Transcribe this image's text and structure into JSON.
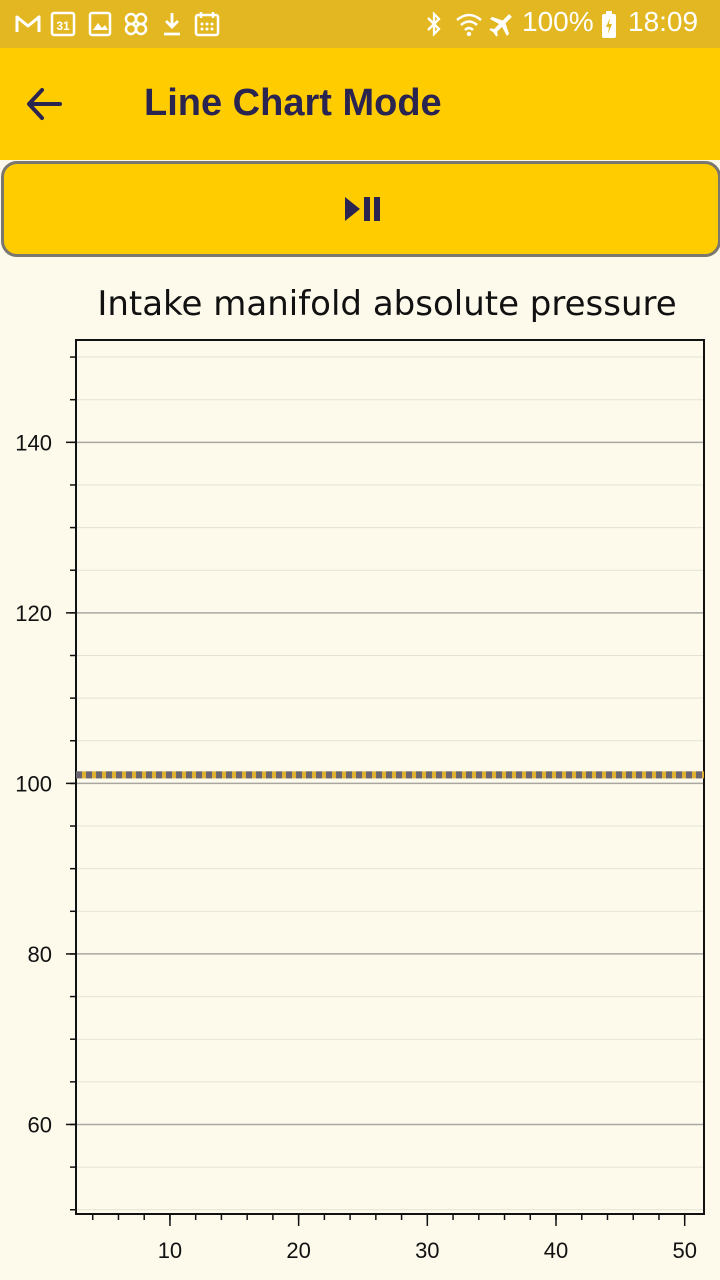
{
  "status_bar": {
    "battery": "100%",
    "time": "18:09",
    "calendar_day": "31",
    "icons": [
      "gmail-icon",
      "calendar-icon",
      "gallery-icon",
      "pinwheel-icon",
      "download-icon",
      "calendar-grid-icon",
      "bluetooth-icon",
      "wifi-icon",
      "airplane-icon",
      "battery-charging-icon"
    ]
  },
  "app_bar": {
    "title": "Line Chart Mode",
    "back_icon": "arrow-left-icon"
  },
  "controls": {
    "play_pause_icon": "play-pause-icon"
  },
  "colors": {
    "status_bar": "#E2B722",
    "app_bar": "#FFCC00",
    "background": "#FDFAEC",
    "title_text": "#2A2450",
    "series_line": "#6B6570",
    "series_highlight": "#E0B030"
  },
  "chart_data": {
    "type": "line",
    "title": "Intake manifold absolute pressure",
    "xlabel": "",
    "ylabel": "",
    "xlim": [
      2.7,
      51.5
    ],
    "ylim": [
      49.5,
      152
    ],
    "x_ticks": [
      10,
      20,
      30,
      40,
      50
    ],
    "y_ticks": [
      60,
      80,
      100,
      120,
      140
    ],
    "grid": true,
    "series": [
      {
        "x": [
          2.7,
          51.5
        ],
        "values": [
          101,
          101
        ]
      }
    ]
  }
}
